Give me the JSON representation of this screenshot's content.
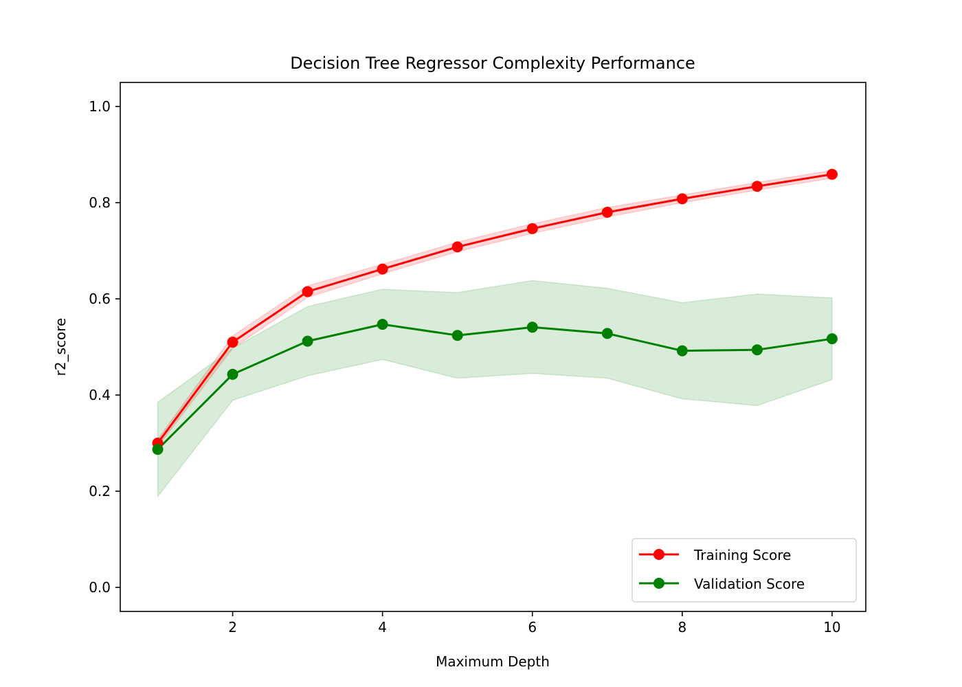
{
  "chart_data": {
    "type": "line",
    "title": "Decision Tree Regressor Complexity Performance",
    "xlabel": "Maximum Depth",
    "ylabel": "r2_score",
    "xlim": [
      0.5,
      10.45
    ],
    "ylim": [
      -0.05,
      1.05
    ],
    "x_ticks": [
      2,
      4,
      6,
      8,
      10
    ],
    "x_tick_labels": [
      "2",
      "4",
      "6",
      "8",
      "10"
    ],
    "y_ticks": [
      0.0,
      0.2,
      0.4,
      0.6,
      0.8,
      1.0
    ],
    "y_tick_labels": [
      "0.0",
      "0.2",
      "0.4",
      "0.6",
      "0.8",
      "1.0"
    ],
    "grid": false,
    "legend_position": "lower-right",
    "x": [
      1,
      2,
      3,
      4,
      5,
      6,
      7,
      8,
      9,
      10
    ],
    "series": [
      {
        "name": "Training Score",
        "color": "#ff0000",
        "band_color": "#ff0000",
        "values": [
          0.3,
          0.51,
          0.615,
          0.662,
          0.708,
          0.746,
          0.78,
          0.808,
          0.834,
          0.859
        ],
        "lower": [
          0.292,
          0.497,
          0.603,
          0.652,
          0.698,
          0.736,
          0.77,
          0.8,
          0.826,
          0.851
        ],
        "upper": [
          0.308,
          0.523,
          0.627,
          0.672,
          0.718,
          0.756,
          0.79,
          0.816,
          0.842,
          0.867
        ]
      },
      {
        "name": "Validation Score",
        "color": "#008000",
        "band_color": "#008000",
        "values": [
          0.287,
          0.443,
          0.512,
          0.547,
          0.524,
          0.541,
          0.528,
          0.492,
          0.494,
          0.517
        ],
        "lower": [
          0.189,
          0.389,
          0.44,
          0.474,
          0.435,
          0.445,
          0.435,
          0.392,
          0.378,
          0.432
        ],
        "upper": [
          0.385,
          0.497,
          0.584,
          0.62,
          0.613,
          0.638,
          0.622,
          0.592,
          0.61,
          0.602
        ]
      }
    ]
  }
}
